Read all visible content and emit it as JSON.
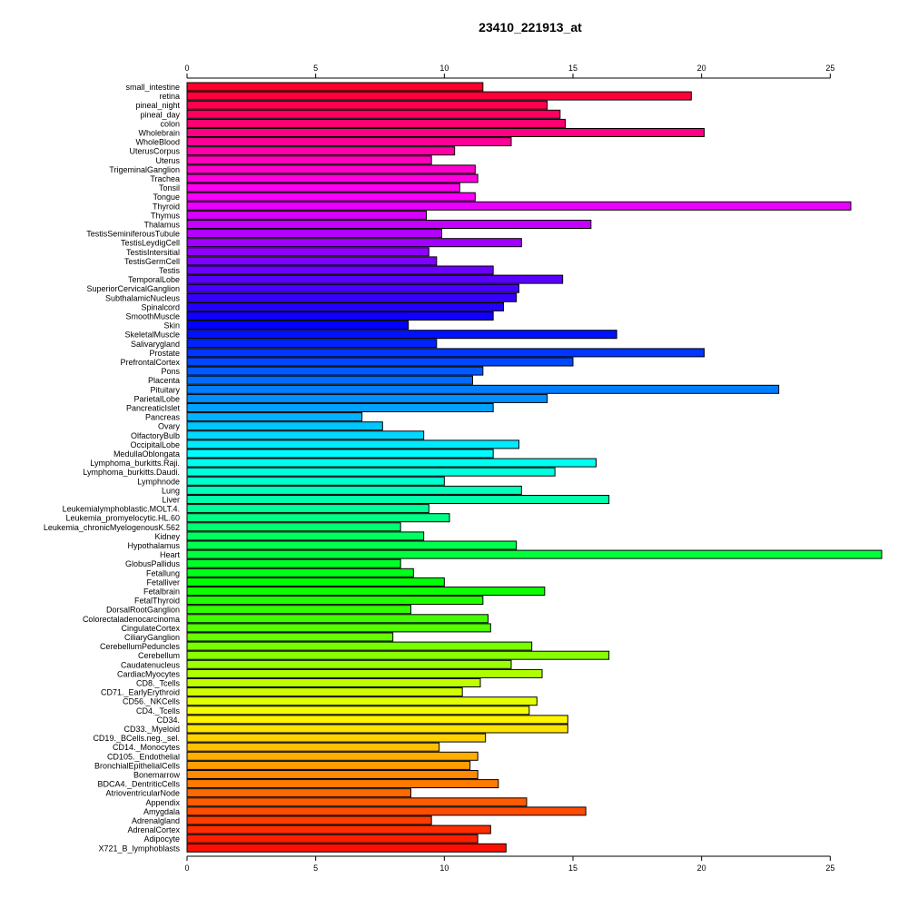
{
  "chart_data": {
    "type": "bar",
    "orientation": "horizontal",
    "title": "23410_221913_at",
    "xlabel": "",
    "ylabel": "",
    "xlim": [
      0,
      27
    ],
    "xticks": [
      0,
      5,
      10,
      15,
      20,
      25
    ],
    "grid": false,
    "legend": "none",
    "categories": [
      "small_intestine",
      "retina",
      "pineal_night",
      "pineal_day",
      "colon",
      "Wholebrain",
      "WholeBlood",
      "UterusCorpus",
      "Uterus",
      "TrigeminalGanglion",
      "Trachea",
      "Tonsil",
      "Tongue",
      "Thyroid",
      "Thymus",
      "Thalamus",
      "TestisSeminiferousTubule",
      "TestisLeydigCell",
      "TestisIntersitial",
      "TestisGermCell",
      "Testis",
      "TemporalLobe",
      "SuperiorCervicalGanglion",
      "SubthalamicNucleus",
      "Spinalcord",
      "SmoothMuscle",
      "Skin",
      "SkeletalMuscle",
      "Salivarygland",
      "Prostate",
      "PrefrontalCortex",
      "Pons",
      "Placenta",
      "Pituitary",
      "ParietalLobe",
      "PancreaticIslet",
      "Pancreas",
      "Ovary",
      "OlfactoryBulb",
      "OccipitalLobe",
      "MedullaOblongata",
      "Lymphoma_burkitts.Raji.",
      "Lymphoma_burkitts.Daudi.",
      "Lymphnode",
      "Lung",
      "Liver",
      "Leukemialymphoblastic.MOLT.4.",
      "Leukemia_promyelocytic.HL.60",
      "Leukemia_chronicMyelogenousK.562",
      "Kidney",
      "Hypothalamus",
      "Heart",
      "GlobusPallidus",
      "Fetallung",
      "Fetalliver",
      "Fetalbrain",
      "FetalThyroid",
      "DorsalRootGanglion",
      "Colorectaladenocarcinoma",
      "CingulateCortex",
      "CiliaryGanglion",
      "CerebellumPeduncles",
      "Cerebellum",
      "Caudatenucleus",
      "CardiacMyocytes",
      "CD8._Tcells",
      "CD71._EarlyErythroid",
      "CD56._NKCells",
      "CD4._Tcells",
      "CD34.",
      "CD33._Myeloid",
      "CD19._BCells.neg._sel.",
      "CD14._Monocytes",
      "CD105._Endothelial",
      "BronchialEpithelialCells",
      "Bonemarrow",
      "BDCA4._DentriticCells",
      "AtrioventricularNode",
      "Appendix",
      "Amygdala",
      "Adrenalgland",
      "AdrenalCortex",
      "Adipocyte",
      "X721_B_lymphoblasts"
    ],
    "values": [
      11.5,
      19.6,
      14.0,
      14.5,
      14.7,
      20.1,
      12.6,
      10.4,
      9.5,
      11.2,
      11.3,
      10.6,
      11.2,
      25.8,
      9.3,
      15.7,
      9.9,
      13.0,
      9.4,
      9.7,
      11.9,
      14.6,
      12.9,
      12.8,
      12.3,
      11.9,
      8.6,
      16.7,
      9.7,
      20.1,
      15.0,
      11.5,
      11.1,
      23.0,
      14.0,
      11.9,
      6.8,
      7.6,
      9.2,
      12.9,
      11.9,
      15.9,
      14.3,
      10.0,
      13.0,
      16.4,
      9.4,
      10.2,
      8.3,
      9.2,
      12.8,
      27.0,
      8.3,
      8.8,
      10.0,
      13.9,
      11.5,
      8.7,
      11.7,
      11.8,
      8.0,
      13.4,
      16.4,
      12.6,
      13.8,
      11.4,
      10.7,
      13.6,
      13.3,
      14.8,
      14.8,
      11.6,
      9.8,
      11.3,
      11.0,
      11.3,
      12.1,
      8.7,
      13.2,
      15.5,
      9.5,
      11.8,
      11.3,
      12.4
    ],
    "color_scale": "rainbow (red -> magenta -> blue -> cyan -> green -> yellow -> orange -> red)",
    "bar_edge_color": "#000000"
  }
}
